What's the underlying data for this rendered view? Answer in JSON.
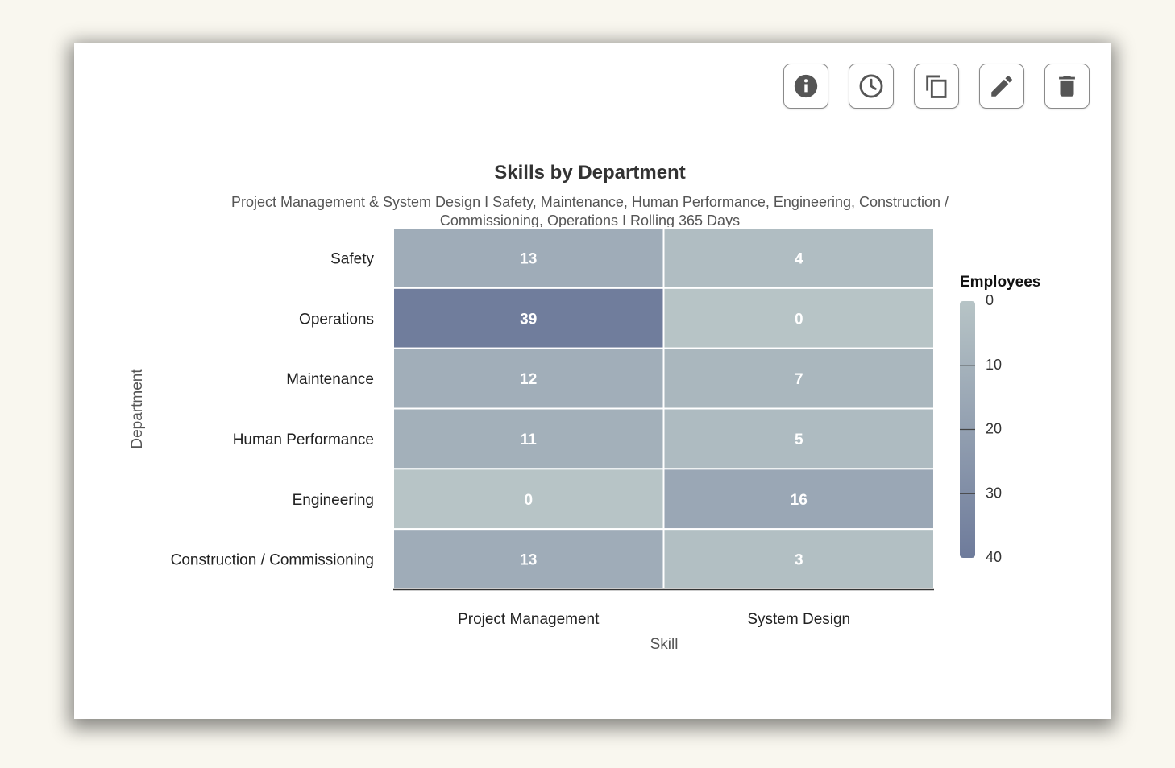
{
  "toolbar": {
    "icons": [
      "info-icon",
      "clock-icon",
      "copy-icon",
      "pencil-icon",
      "trash-icon"
    ]
  },
  "chart_data": {
    "type": "heatmap",
    "title": "Skills by Department",
    "subtitle_lines": [
      "Project Management & System Design I Safety, Maintenance, Human Performance, Engineering, Construction /",
      "Commissioning, Operations I Rolling 365 Days"
    ],
    "xlabel": "Skill",
    "ylabel": "Department",
    "x_categories": [
      "Project Management",
      "System Design"
    ],
    "y_categories": [
      "Safety",
      "Operations",
      "Maintenance",
      "Human Performance",
      "Engineering",
      "Construction / Commissioning"
    ],
    "values": [
      [
        13,
        4
      ],
      [
        39,
        0
      ],
      [
        12,
        7
      ],
      [
        11,
        5
      ],
      [
        0,
        16
      ],
      [
        13,
        3
      ]
    ],
    "colorbar": {
      "title": "Employees",
      "range": [
        0,
        40
      ],
      "ticks": [
        0,
        10,
        20,
        30,
        40
      ],
      "color_low": "#b7c4c6",
      "color_high": "#6e7b9b"
    },
    "legend_position": "right"
  }
}
